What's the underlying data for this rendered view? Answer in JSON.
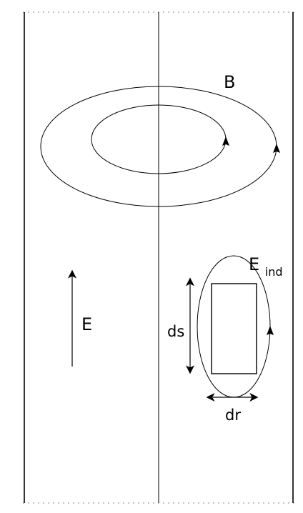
{
  "labels": {
    "magnetic_field": "B",
    "electric_field": "E",
    "induced_field_base": "E",
    "induced_field_subscript": "ind",
    "ds": "ds",
    "dr": "dr"
  },
  "colors": {
    "stroke": "#000000",
    "dotted": "#8a8a8a",
    "background": "#ffffff"
  }
}
